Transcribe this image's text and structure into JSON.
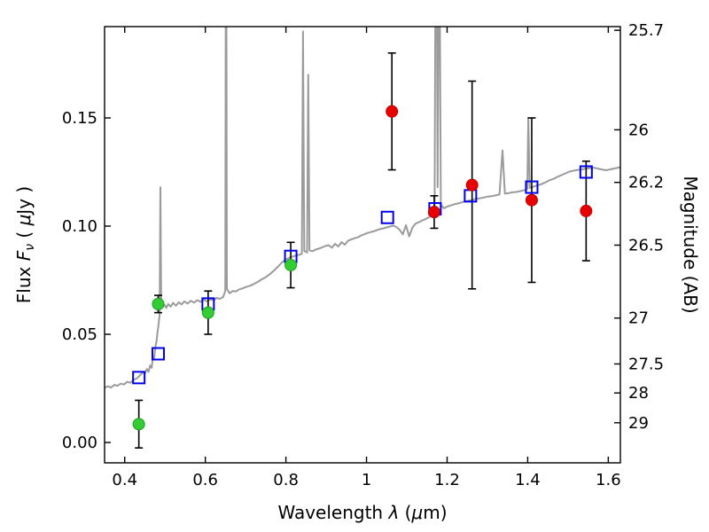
{
  "figure": {
    "background": "#ffffff",
    "axes_color": "#000000",
    "tick_label_color": "#000000"
  },
  "chart_data": {
    "type": "line",
    "title": "",
    "xlabel": "Wavelength λ (μm)",
    "ylabel_left": "Flux Fν ( μJy )",
    "ylabel_right": "Magnitude (AB)",
    "xlabel_segments": [
      {
        "t": "Wavelength  "
      },
      {
        "t": "λ",
        "i": 1
      },
      {
        "t": " (",
        "i": 0
      },
      {
        "t": "μ",
        "i": 1
      },
      {
        "t": "m)"
      }
    ],
    "ylabel_left_segments": [
      {
        "t": "Flux  "
      },
      {
        "t": "F",
        "i": 1
      },
      {
        "t": "ν",
        "i": 1,
        "sub": 1
      },
      {
        "t": "  ( "
      },
      {
        "t": "μ",
        "i": 1
      },
      {
        "t": "Jy )"
      }
    ],
    "ylabel_right_segments": [
      {
        "t": "Magnitude (AB)"
      }
    ],
    "xlim": [
      0.35,
      1.63
    ],
    "ylim": [
      -0.0094,
      0.1922
    ],
    "grid": false,
    "legend": "none",
    "x_ticks": [
      {
        "v": 0.4,
        "label": "0.4"
      },
      {
        "v": 0.6,
        "label": "0.6"
      },
      {
        "v": 0.8,
        "label": "0.8"
      },
      {
        "v": 1.0,
        "label": "1"
      },
      {
        "v": 1.2,
        "label": "1.2"
      },
      {
        "v": 1.4,
        "label": "1.4"
      },
      {
        "v": 1.6,
        "label": "1.6"
      }
    ],
    "y_ticks_left": [
      {
        "v": 0.0,
        "label": "0.00"
      },
      {
        "v": 0.05,
        "label": "0.05"
      },
      {
        "v": 0.1,
        "label": "0.10"
      },
      {
        "v": 0.15,
        "label": "0.15"
      }
    ],
    "y_ticks_right": [
      {
        "mag": "25.7",
        "flux": 0.1905
      },
      {
        "mag": "26",
        "flux": 0.1445
      },
      {
        "mag": "26.2",
        "flux": 0.1202
      },
      {
        "mag": "26.5",
        "flux": 0.0912
      },
      {
        "mag": "27",
        "flux": 0.0575
      },
      {
        "mag": "27.5",
        "flux": 0.0363
      },
      {
        "mag": "28",
        "flux": 0.0229
      },
      {
        "mag": "29",
        "flux": 0.00912
      }
    ],
    "spectrum": {
      "name": "model-spectrum-line",
      "color": "#9b9b9b",
      "linewidth": 2,
      "points": [
        [
          0.35,
          0.0253
        ],
        [
          0.358,
          0.026
        ],
        [
          0.366,
          0.0254
        ],
        [
          0.374,
          0.0266
        ],
        [
          0.382,
          0.0262
        ],
        [
          0.39,
          0.0272
        ],
        [
          0.398,
          0.0268
        ],
        [
          0.406,
          0.028
        ],
        [
          0.414,
          0.0276
        ],
        [
          0.422,
          0.029
        ],
        [
          0.43,
          0.0296
        ],
        [
          0.438,
          0.031
        ],
        [
          0.444,
          0.0324
        ],
        [
          0.45,
          0.0318
        ],
        [
          0.455,
          0.034
        ],
        [
          0.459,
          0.0326
        ],
        [
          0.463,
          0.0356
        ],
        [
          0.467,
          0.0345
        ],
        [
          0.47,
          0.04
        ],
        [
          0.473,
          0.0385
        ],
        [
          0.476,
          0.044
        ],
        [
          0.479,
          0.047
        ],
        [
          0.481,
          0.0505
        ],
        [
          0.484,
          0.0545
        ],
        [
          0.4865,
          0.059
        ],
        [
          0.4885,
          0.118
        ],
        [
          0.4905,
          0.064
        ],
        [
          0.494,
          0.0625
        ],
        [
          0.498,
          0.0638
        ],
        [
          0.503,
          0.0622
        ],
        [
          0.508,
          0.064
        ],
        [
          0.514,
          0.0628
        ],
        [
          0.52,
          0.0645
        ],
        [
          0.527,
          0.0632
        ],
        [
          0.534,
          0.0648
        ],
        [
          0.541,
          0.0638
        ],
        [
          0.548,
          0.0652
        ],
        [
          0.556,
          0.0642
        ],
        [
          0.564,
          0.0655
        ],
        [
          0.572,
          0.0646
        ],
        [
          0.58,
          0.0658
        ],
        [
          0.588,
          0.065
        ],
        [
          0.596,
          0.066
        ],
        [
          0.604,
          0.0652
        ],
        [
          0.612,
          0.0662
        ],
        [
          0.62,
          0.0658
        ],
        [
          0.628,
          0.0668
        ],
        [
          0.636,
          0.0664
        ],
        [
          0.644,
          0.0672
        ],
        [
          0.6495,
          0.07
        ],
        [
          0.6515,
          0.3
        ],
        [
          0.6535,
          0.071
        ],
        [
          0.66,
          0.069
        ],
        [
          0.668,
          0.07
        ],
        [
          0.676,
          0.0698
        ],
        [
          0.684,
          0.0708
        ],
        [
          0.692,
          0.0712
        ],
        [
          0.7,
          0.0718
        ],
        [
          0.71,
          0.0724
        ],
        [
          0.72,
          0.0732
        ],
        [
          0.73,
          0.0742
        ],
        [
          0.74,
          0.0754
        ],
        [
          0.75,
          0.0764
        ],
        [
          0.76,
          0.0778
        ],
        [
          0.77,
          0.0794
        ],
        [
          0.78,
          0.0812
        ],
        [
          0.79,
          0.0832
        ],
        [
          0.8,
          0.0846
        ],
        [
          0.81,
          0.0856
        ],
        [
          0.82,
          0.0861
        ],
        [
          0.83,
          0.0866
        ],
        [
          0.8395,
          0.0872
        ],
        [
          0.8425,
          0.19
        ],
        [
          0.8455,
          0.0885
        ],
        [
          0.8525,
          0.0878
        ],
        [
          0.8555,
          0.17
        ],
        [
          0.8585,
          0.0888
        ],
        [
          0.866,
          0.0884
        ],
        [
          0.874,
          0.0892
        ],
        [
          0.882,
          0.0896
        ],
        [
          0.89,
          0.0902
        ],
        [
          0.898,
          0.0908
        ],
        [
          0.906,
          0.0912
        ],
        [
          0.914,
          0.09
        ],
        [
          0.922,
          0.0918
        ],
        [
          0.93,
          0.0906
        ],
        [
          0.938,
          0.0926
        ],
        [
          0.946,
          0.0914
        ],
        [
          0.954,
          0.0932
        ],
        [
          0.962,
          0.0938
        ],
        [
          0.97,
          0.0944
        ],
        [
          0.978,
          0.0948
        ],
        [
          0.986,
          0.0956
        ],
        [
          0.994,
          0.0962
        ],
        [
          1.002,
          0.0968
        ],
        [
          1.01,
          0.0972
        ],
        [
          1.018,
          0.0976
        ],
        [
          1.026,
          0.0982
        ],
        [
          1.034,
          0.0986
        ],
        [
          1.042,
          0.099
        ],
        [
          1.05,
          0.0994
        ],
        [
          1.058,
          0.0998
        ],
        [
          1.066,
          0.1002
        ],
        [
          1.074,
          0.0996
        ],
        [
          1.082,
          0.0984
        ],
        [
          1.09,
          0.0962
        ],
        [
          1.098,
          0.1004
        ],
        [
          1.106,
          0.0952
        ],
        [
          1.114,
          0.0994
        ],
        [
          1.122,
          0.1012
        ],
        [
          1.13,
          0.1018
        ],
        [
          1.138,
          0.1026
        ],
        [
          1.146,
          0.1032
        ],
        [
          1.154,
          0.104
        ],
        [
          1.162,
          0.105
        ],
        [
          1.169,
          0.107
        ],
        [
          1.1725,
          0.3
        ],
        [
          1.1765,
          0.118
        ],
        [
          1.1805,
          0.26
        ],
        [
          1.1845,
          0.11
        ],
        [
          1.192,
          0.1082
        ],
        [
          1.2,
          0.109
        ],
        [
          1.21,
          0.1096
        ],
        [
          1.22,
          0.1102
        ],
        [
          1.23,
          0.1106
        ],
        [
          1.24,
          0.1112
        ],
        [
          1.25,
          0.1116
        ],
        [
          1.26,
          0.112
        ],
        [
          1.27,
          0.1126
        ],
        [
          1.28,
          0.1128
        ],
        [
          1.29,
          0.1132
        ],
        [
          1.3,
          0.1136
        ],
        [
          1.31,
          0.1138
        ],
        [
          1.32,
          0.1142
        ],
        [
          1.33,
          0.1146
        ],
        [
          1.3375,
          0.135
        ],
        [
          1.3435,
          0.115
        ],
        [
          1.352,
          0.1152
        ],
        [
          1.362,
          0.1156
        ],
        [
          1.372,
          0.1158
        ],
        [
          1.382,
          0.1162
        ],
        [
          1.392,
          0.1166
        ],
        [
          1.399,
          0.1172
        ],
        [
          1.4015,
          0.15
        ],
        [
          1.405,
          0.1176
        ],
        [
          1.414,
          0.1182
        ],
        [
          1.424,
          0.1188
        ],
        [
          1.434,
          0.1194
        ],
        [
          1.444,
          0.1202
        ],
        [
          1.454,
          0.1212
        ],
        [
          1.464,
          0.1218
        ],
        [
          1.474,
          0.1228
        ],
        [
          1.484,
          0.1236
        ],
        [
          1.494,
          0.1244
        ],
        [
          1.504,
          0.1252
        ],
        [
          1.514,
          0.1256
        ],
        [
          1.524,
          0.126
        ],
        [
          1.534,
          0.1262
        ],
        [
          1.544,
          0.1266
        ],
        [
          1.554,
          0.1268
        ],
        [
          1.564,
          0.127
        ],
        [
          1.574,
          0.1266
        ],
        [
          1.584,
          0.1262
        ],
        [
          1.594,
          0.1258
        ],
        [
          1.604,
          0.1262
        ],
        [
          1.614,
          0.1266
        ],
        [
          1.624,
          0.127
        ],
        [
          1.63,
          0.1272
        ]
      ]
    },
    "series": [
      {
        "name": "green-filled-circles",
        "marker": "circle",
        "color": "#32cd32",
        "edge_color": "#1f9e1f",
        "errorbar_color": "#000000",
        "points": [
          {
            "x": 0.435,
            "y": 0.0085,
            "yerr": 0.011
          },
          {
            "x": 0.483,
            "y": 0.064,
            "yerr": 0.004
          },
          {
            "x": 0.607,
            "y": 0.06,
            "yerr": 0.01
          },
          {
            "x": 0.812,
            "y": 0.082,
            "yerr": 0.0105
          }
        ]
      },
      {
        "name": "red-filled-circles",
        "marker": "circle",
        "color": "#e60000",
        "edge_color": "#bf0000",
        "errorbar_color": "#000000",
        "points": [
          {
            "x": 1.063,
            "y": 0.153,
            "yerr": 0.027
          },
          {
            "x": 1.168,
            "y": 0.1065,
            "yerr": 0.0075
          },
          {
            "x": 1.262,
            "y": 0.119,
            "yerr": 0.048
          },
          {
            "x": 1.41,
            "y": 0.112,
            "yerr": 0.038
          },
          {
            "x": 1.545,
            "y": 0.107,
            "yerr": 0.023
          }
        ]
      },
      {
        "name": "blue-open-squares",
        "marker": "square-open",
        "color": "#0000ee",
        "edge_color": "#0000ee",
        "errorbar_color": "#000000",
        "points": [
          {
            "x": 0.435,
            "y": 0.03
          },
          {
            "x": 0.483,
            "y": 0.041
          },
          {
            "x": 0.607,
            "y": 0.064
          },
          {
            "x": 0.812,
            "y": 0.086
          },
          {
            "x": 1.052,
            "y": 0.104
          },
          {
            "x": 1.17,
            "y": 0.108
          },
          {
            "x": 1.258,
            "y": 0.114
          },
          {
            "x": 1.41,
            "y": 0.118
          },
          {
            "x": 1.545,
            "y": 0.125
          }
        ]
      }
    ]
  }
}
